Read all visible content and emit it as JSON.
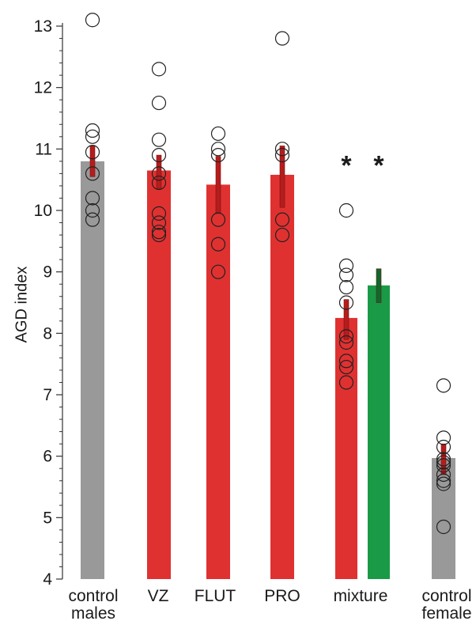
{
  "chart_data": {
    "type": "bar",
    "title": "",
    "xlabel": "",
    "ylabel": "AGD index",
    "ylim": [
      4,
      13.2
    ],
    "yticks": [
      "4",
      "5",
      "6",
      "7",
      "8",
      "9",
      "10",
      "11",
      "12",
      "13"
    ],
    "grid": false,
    "legend": "none",
    "colors": {
      "control": "#999999",
      "treated": "#e03131",
      "mixture_green": "#1a9a46",
      "errorbar": "#b51d1d",
      "errorbar_green": "#0c6a2c",
      "points": "#222222"
    },
    "groups": [
      {
        "label_lines": [
          "control",
          "males"
        ],
        "bars": [
          {
            "value": 10.8,
            "err_low": 10.55,
            "err_high": 11.05,
            "color_key": "control",
            "points": [
              13.1,
              11.3,
              11.2,
              10.95,
              10.6,
              10.2,
              10.0,
              9.85
            ]
          }
        ]
      },
      {
        "label_lines": [
          "VZ"
        ],
        "bars": [
          {
            "value": 10.65,
            "err_low": 10.35,
            "err_high": 10.9,
            "color_key": "treated",
            "points": [
              12.3,
              11.75,
              11.15,
              10.9,
              10.6,
              10.45,
              9.95,
              9.8,
              9.65,
              9.6
            ]
          }
        ]
      },
      {
        "label_lines": [
          "FLUT"
        ],
        "bars": [
          {
            "value": 10.42,
            "err_low": 9.95,
            "err_high": 10.88,
            "color_key": "treated",
            "points": [
              11.25,
              11.0,
              10.9,
              9.85,
              9.45,
              9.0
            ]
          }
        ]
      },
      {
        "label_lines": [
          "PRO"
        ],
        "bars": [
          {
            "value": 10.58,
            "err_low": 10.05,
            "err_high": 11.05,
            "color_key": "treated",
            "points": [
              12.8,
              11.0,
              10.9,
              9.85,
              9.6
            ]
          }
        ]
      },
      {
        "label_lines": [
          "mixture"
        ],
        "star": "*",
        "bars": [
          {
            "value": 8.25,
            "err_low": 7.9,
            "err_high": 8.55,
            "color_key": "treated",
            "points": [
              10.0,
              9.1,
              8.95,
              8.75,
              8.5,
              7.95,
              7.85,
              7.55,
              7.45,
              7.2
            ]
          },
          {
            "value": 8.78,
            "err_low": 8.5,
            "err_high": 9.05,
            "color_key": "mixture_green",
            "star": "*",
            "points": []
          }
        ]
      },
      {
        "label_lines": [
          "control",
          "female"
        ],
        "bars": [
          {
            "value": 5.97,
            "err_low": 5.7,
            "err_high": 6.2,
            "color_key": "control",
            "points": [
              7.15,
              6.3,
              6.15,
              5.95,
              5.9,
              5.85,
              5.7,
              5.6,
              5.55,
              4.85
            ]
          }
        ]
      }
    ]
  }
}
